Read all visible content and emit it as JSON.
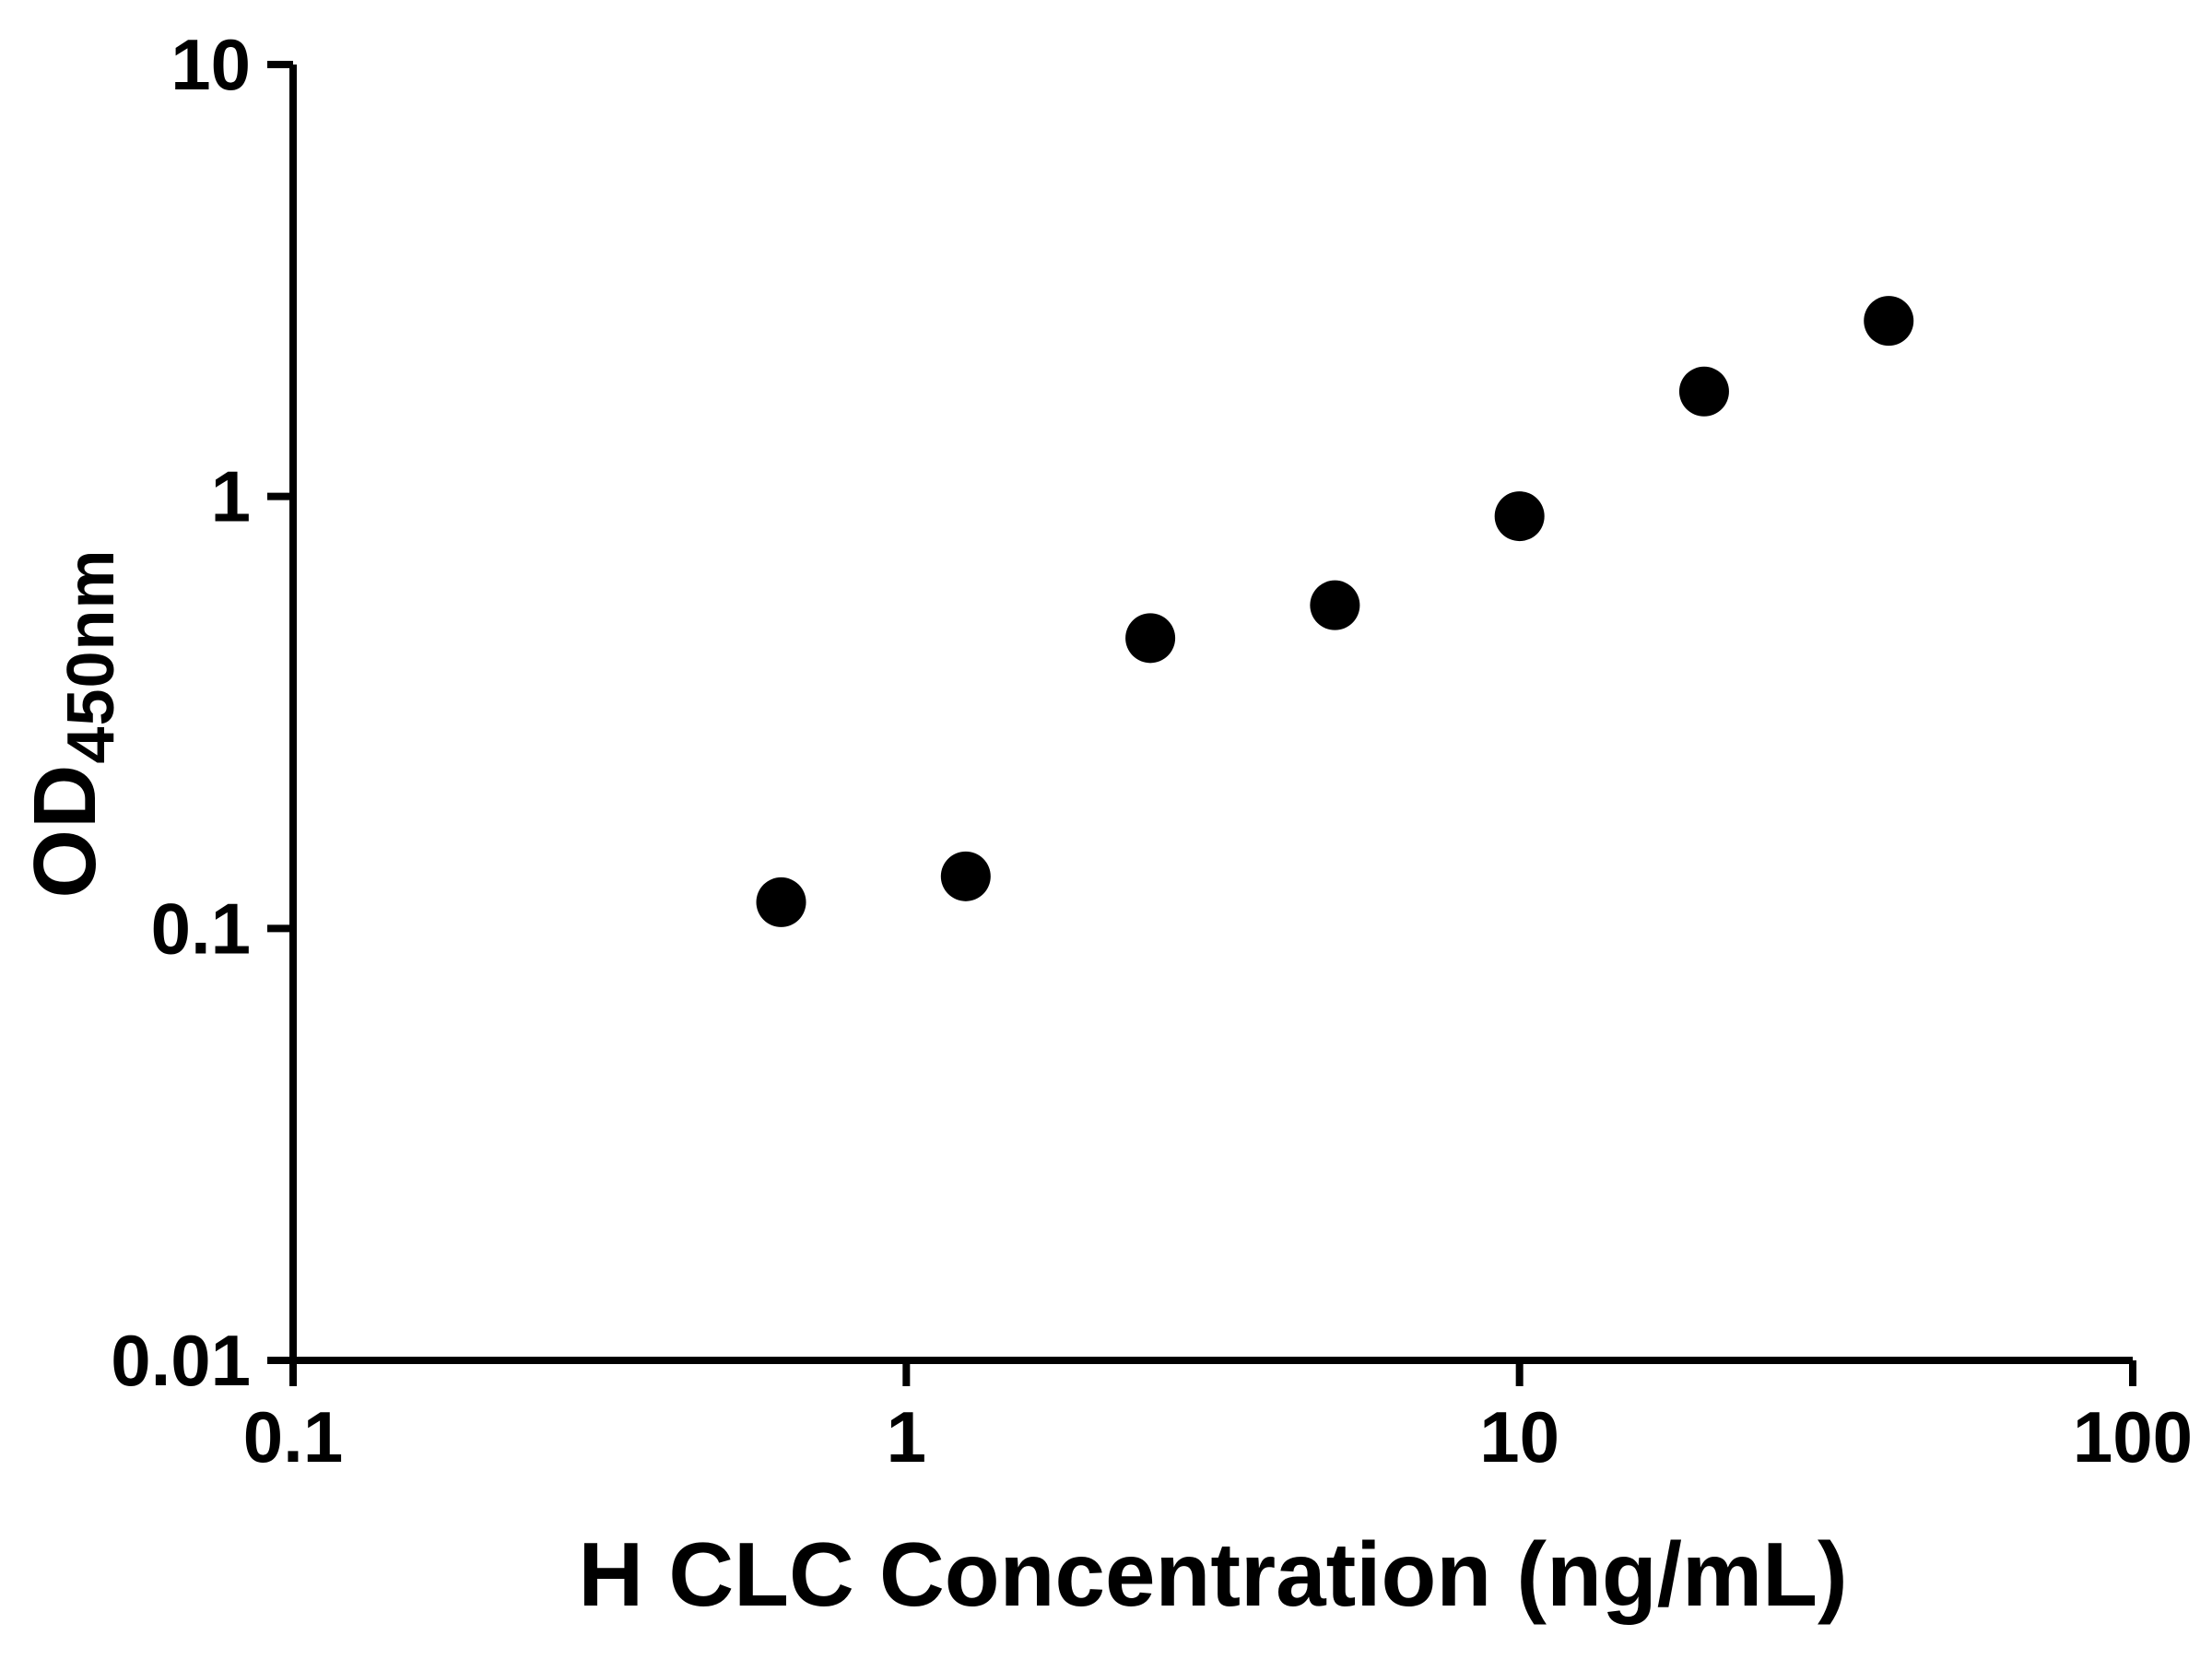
{
  "chart_data": {
    "type": "scatter",
    "title": "",
    "xlabel": "H CLC Concentration (ng/mL)",
    "ylabel_main": "OD",
    "ylabel_sub": "450nm",
    "x_scale": "log",
    "y_scale": "log",
    "xlim": [
      0.1,
      100
    ],
    "ylim": [
      0.01,
      10
    ],
    "x_ticks": [
      0.1,
      1,
      10,
      100
    ],
    "x_tick_labels": [
      "0.1",
      "1",
      "10",
      "100"
    ],
    "y_ticks": [
      0.01,
      0.1,
      1,
      10
    ],
    "y_tick_labels": [
      "0.01",
      "0.1",
      "1",
      "10"
    ],
    "points": [
      {
        "x": 0.625,
        "y": 0.115
      },
      {
        "x": 1.25,
        "y": 0.132
      },
      {
        "x": 2.5,
        "y": 0.47
      },
      {
        "x": 5,
        "y": 0.56
      },
      {
        "x": 10,
        "y": 0.9
      },
      {
        "x": 20,
        "y": 1.75
      },
      {
        "x": 40,
        "y": 2.55
      }
    ],
    "marker_color": "#000000",
    "line_color": "#000000",
    "axis_color": "#000000",
    "grid": false,
    "legend": null
  }
}
